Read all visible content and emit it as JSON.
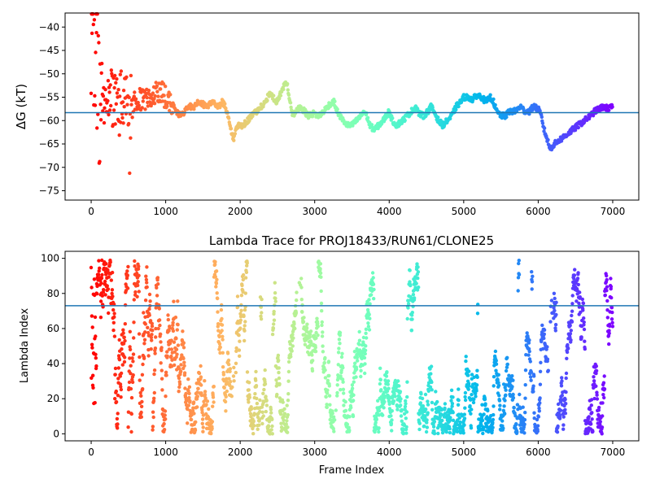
{
  "chart_data": [
    {
      "type": "scatter",
      "title": "",
      "xlabel": "",
      "ylabel": "ΔG (kT)",
      "xlim": [
        -350,
        7350
      ],
      "ylim": [
        -77,
        -37
      ],
      "xticks": [
        0,
        1000,
        2000,
        3000,
        4000,
        5000,
        6000,
        7000
      ],
      "xtick_labels": [
        "0",
        "1000",
        "2000",
        "3000",
        "4000",
        "5000",
        "6000",
        "7000"
      ],
      "yticks": [
        -75,
        -70,
        -65,
        -60,
        -55,
        -50,
        -45,
        -40
      ],
      "ytick_labels": [
        "−75",
        "−70",
        "−65",
        "−60",
        "−55",
        "−50",
        "−45",
        "−40"
      ],
      "hline": -58.3,
      "hline_color": "#1f77b4",
      "colormap": "rainbow (red at frame 0 → purple at frame 7000)",
      "trace_points": [
        [
          0,
          -37.5
        ],
        [
          60,
          -45
        ],
        [
          120,
          -53
        ],
        [
          180,
          -57
        ],
        [
          260,
          -55
        ],
        [
          340,
          -57
        ],
        [
          420,
          -56
        ],
        [
          500,
          -55
        ],
        [
          560,
          -56
        ],
        [
          640,
          -55
        ],
        [
          700,
          -56
        ],
        [
          780,
          -55
        ],
        [
          860,
          -54
        ],
        [
          940,
          -54
        ],
        [
          1000,
          -55
        ],
        [
          1080,
          -56
        ],
        [
          1140,
          -58
        ],
        [
          1200,
          -59
        ],
        [
          1260,
          -58
        ],
        [
          1320,
          -57
        ],
        [
          1380,
          -57
        ],
        [
          1440,
          -56
        ],
        [
          1500,
          -56.5
        ],
        [
          1560,
          -57
        ],
        [
          1620,
          -56
        ],
        [
          1680,
          -56.5
        ],
        [
          1720,
          -57
        ],
        [
          1760,
          -56
        ],
        [
          1800,
          -57
        ],
        [
          1840,
          -59
        ],
        [
          1880,
          -62
        ],
        [
          1910,
          -64
        ],
        [
          1940,
          -62
        ],
        [
          1980,
          -61
        ],
        [
          2040,
          -61
        ],
        [
          2100,
          -60
        ],
        [
          2160,
          -59
        ],
        [
          2220,
          -58
        ],
        [
          2280,
          -57
        ],
        [
          2340,
          -56
        ],
        [
          2400,
          -54
        ],
        [
          2440,
          -55
        ],
        [
          2480,
          -56
        ],
        [
          2520,
          -55
        ],
        [
          2580,
          -53
        ],
        [
          2620,
          -51.5
        ],
        [
          2660,
          -55
        ],
        [
          2700,
          -59
        ],
        [
          2760,
          -58
        ],
        [
          2800,
          -57
        ],
        [
          2860,
          -58
        ],
        [
          2920,
          -59
        ],
        [
          2980,
          -58.5
        ],
        [
          3060,
          -59
        ],
        [
          3120,
          -58
        ],
        [
          3200,
          -56.5
        ],
        [
          3260,
          -56
        ],
        [
          3300,
          -58
        ],
        [
          3380,
          -60
        ],
        [
          3440,
          -61
        ],
        [
          3500,
          -61
        ],
        [
          3560,
          -60
        ],
        [
          3620,
          -59
        ],
        [
          3660,
          -58
        ],
        [
          3700,
          -59
        ],
        [
          3740,
          -61
        ],
        [
          3800,
          -62
        ],
        [
          3860,
          -61
        ],
        [
          3920,
          -60
        ],
        [
          3960,
          -59
        ],
        [
          4000,
          -58
        ],
        [
          4040,
          -60
        ],
        [
          4100,
          -61
        ],
        [
          4180,
          -60
        ],
        [
          4240,
          -59
        ],
        [
          4300,
          -58
        ],
        [
          4360,
          -57
        ],
        [
          4400,
          -58.5
        ],
        [
          4460,
          -59
        ],
        [
          4520,
          -58
        ],
        [
          4560,
          -57
        ],
        [
          4600,
          -58
        ],
        [
          4660,
          -60
        ],
        [
          4720,
          -61
        ],
        [
          4780,
          -60
        ],
        [
          4840,
          -59
        ],
        [
          4900,
          -57
        ],
        [
          4960,
          -56
        ],
        [
          5000,
          -55
        ],
        [
          5060,
          -55
        ],
        [
          5120,
          -55.5
        ],
        [
          5180,
          -54.5
        ],
        [
          5240,
          -55
        ],
        [
          5300,
          -56
        ],
        [
          5360,
          -55
        ],
        [
          5400,
          -56
        ],
        [
          5440,
          -58
        ],
        [
          5500,
          -59
        ],
        [
          5560,
          -59
        ],
        [
          5620,
          -58
        ],
        [
          5700,
          -58
        ],
        [
          5760,
          -57
        ],
        [
          5820,
          -58
        ],
        [
          5880,
          -58
        ],
        [
          5940,
          -57
        ],
        [
          6000,
          -57.5
        ],
        [
          6040,
          -59
        ],
        [
          6080,
          -62
        ],
        [
          6120,
          -64
        ],
        [
          6160,
          -66
        ],
        [
          6220,
          -65
        ],
        [
          6300,
          -64
        ],
        [
          6380,
          -63
        ],
        [
          6460,
          -62
        ],
        [
          6540,
          -61
        ],
        [
          6620,
          -60
        ],
        [
          6700,
          -59
        ],
        [
          6760,
          -58
        ],
        [
          6820,
          -57.5
        ],
        [
          6880,
          -57
        ],
        [
          6940,
          -57.5
        ],
        [
          7000,
          -57
        ]
      ]
    },
    {
      "type": "scatter",
      "title": "Lambda Trace for PROJ18433/RUN61/CLONE25",
      "xlabel": "Frame Index",
      "ylabel": "Lambda Index",
      "xlim": [
        -350,
        7350
      ],
      "ylim": [
        -4,
        104
      ],
      "xticks": [
        0,
        1000,
        2000,
        3000,
        4000,
        5000,
        6000,
        7000
      ],
      "xtick_labels": [
        "0",
        "1000",
        "2000",
        "3000",
        "4000",
        "5000",
        "6000",
        "7000"
      ],
      "yticks": [
        0,
        20,
        40,
        60,
        80,
        100
      ],
      "ytick_labels": [
        "0",
        "20",
        "40",
        "60",
        "80",
        "100"
      ],
      "hline": 73,
      "hline_color": "#1f77b4",
      "colormap": "rainbow (red at frame 0 → purple at frame 7000)",
      "n_frames": 7000,
      "lambda_range": [
        0,
        99
      ]
    }
  ]
}
